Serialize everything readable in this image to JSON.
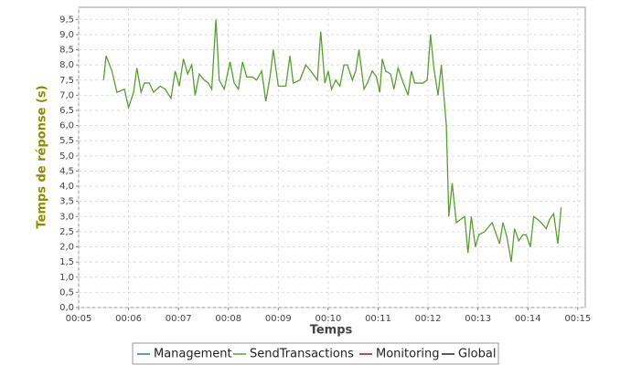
{
  "chart_data": {
    "type": "line",
    "xlabel": "Temps",
    "ylabel": "Temps de réponse (s)",
    "xlim": [
      300,
      909
    ],
    "ylim": [
      0,
      9.9
    ],
    "xticks": [
      {
        "value": 300,
        "label": "00:05"
      },
      {
        "value": 360,
        "label": "00:06"
      },
      {
        "value": 420,
        "label": "00:07"
      },
      {
        "value": 480,
        "label": "00:08"
      },
      {
        "value": 540,
        "label": "00:09"
      },
      {
        "value": 600,
        "label": "00:10"
      },
      {
        "value": 660,
        "label": "00:11"
      },
      {
        "value": 720,
        "label": "00:12"
      },
      {
        "value": 780,
        "label": "00:13"
      },
      {
        "value": 840,
        "label": "00:14"
      },
      {
        "value": 900,
        "label": "00:15"
      }
    ],
    "yticks": [
      {
        "value": 0,
        "label": "0,0"
      },
      {
        "value": 0.5,
        "label": "0,5"
      },
      {
        "value": 1,
        "label": "1,0"
      },
      {
        "value": 1.5,
        "label": "1,5"
      },
      {
        "value": 2,
        "label": "2,0"
      },
      {
        "value": 2.5,
        "label": "2,5"
      },
      {
        "value": 3,
        "label": "3,0"
      },
      {
        "value": 3.5,
        "label": "3,5"
      },
      {
        "value": 4,
        "label": "4,0"
      },
      {
        "value": 4.5,
        "label": "4,5"
      },
      {
        "value": 5,
        "label": "5,0"
      },
      {
        "value": 5.5,
        "label": "5,5"
      },
      {
        "value": 6,
        "label": "6,0"
      },
      {
        "value": 6.5,
        "label": "6,5"
      },
      {
        "value": 7,
        "label": "7,0"
      },
      {
        "value": 7.5,
        "label": "7,5"
      },
      {
        "value": 8,
        "label": "8,0"
      },
      {
        "value": 8.5,
        "label": "8,5"
      },
      {
        "value": 9,
        "label": "9,0"
      },
      {
        "value": 9.5,
        "label": "9,5"
      }
    ],
    "grid": true,
    "x": [
      330,
      333,
      340,
      346,
      355,
      360,
      366,
      370,
      375,
      379,
      385,
      390,
      398,
      404,
      411,
      416,
      421,
      426,
      431,
      436,
      440,
      445,
      451,
      456,
      460,
      465,
      469,
      475,
      482,
      487,
      492,
      497,
      502,
      509,
      514,
      520,
      525,
      530,
      534,
      540,
      549,
      554,
      558,
      566,
      573,
      579,
      587,
      591,
      596,
      600,
      604,
      609,
      614,
      619,
      623,
      629,
      633,
      637,
      643,
      647,
      653,
      658,
      662,
      665,
      669,
      675,
      679,
      684,
      689,
      696,
      700,
      704,
      710,
      714,
      719,
      723,
      727,
      732,
      736,
      742,
      745,
      749,
      754,
      759,
      764,
      768,
      772,
      777,
      781,
      788,
      797,
      806,
      810,
      815,
      820,
      824,
      829,
      834,
      838,
      843,
      847,
      852,
      856,
      862,
      866,
      871,
      876,
      880
    ],
    "series": [
      {
        "name": "Management",
        "color": "#3a6fb0"
      },
      {
        "name": "SendTransactions",
        "color": "#5a9e32",
        "values": [
          7.5,
          8.3,
          7.8,
          7.1,
          7.2,
          6.6,
          7.1,
          7.9,
          7.1,
          7.4,
          7.4,
          7.1,
          7.3,
          7.2,
          6.9,
          7.8,
          7.3,
          8.2,
          7.7,
          8.0,
          7.0,
          7.7,
          7.5,
          7.4,
          7.2,
          9.5,
          7.5,
          7.2,
          8.1,
          7.4,
          7.2,
          8.1,
          7.6,
          7.6,
          7.5,
          7.8,
          6.8,
          7.6,
          8.5,
          7.3,
          7.3,
          8.3,
          7.4,
          7.5,
          8.0,
          7.8,
          7.5,
          9.1,
          7.4,
          7.8,
          7.2,
          7.5,
          7.3,
          8.0,
          8.0,
          7.5,
          7.8,
          8.5,
          7.2,
          7.4,
          7.8,
          7.6,
          7.1,
          8.2,
          7.8,
          7.7,
          7.2,
          7.9,
          7.5,
          7.0,
          7.8,
          7.4,
          7.4,
          7.4,
          7.5,
          9.0,
          7.9,
          7.0,
          8.0,
          6.0,
          3.0,
          4.1,
          2.8,
          2.9,
          3.0,
          1.8,
          3.0,
          2.0,
          2.4,
          2.5,
          2.8,
          2.1,
          2.8,
          2.3,
          1.5,
          2.6,
          2.2,
          2.4,
          2.4,
          2.0,
          3.0,
          2.9,
          2.8,
          2.6,
          2.9,
          3.1,
          2.1,
          3.3
        ]
      },
      {
        "name": "Monitoring",
        "color": "#8b1a2b"
      },
      {
        "name": "Global",
        "color": "#222222"
      }
    ]
  }
}
